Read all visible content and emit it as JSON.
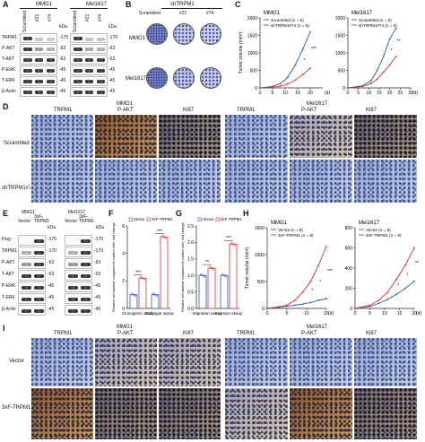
{
  "panels": {
    "A": "A",
    "B": "B",
    "C": "C",
    "D": "D",
    "E": "E",
    "F": "F",
    "G": "G",
    "H": "H",
    "I": "I"
  },
  "panelA": {
    "groups": [
      "MMG1",
      "Mel1617"
    ],
    "cols_left": [
      "Scrambled",
      "#21",
      "#74"
    ],
    "cols_right": [
      "Scrambled",
      "#21",
      "#74"
    ],
    "rows": [
      "TRPM1",
      "P-AKT",
      "T-AKT",
      "P-ERK",
      "T-ERK",
      "β-Actin"
    ],
    "kda_label": "kDa",
    "kda": [
      "-170",
      "-63",
      "-63",
      "-45",
      "-45",
      "-45"
    ]
  },
  "panelB": {
    "header": "shTRPM1",
    "cols": [
      "Scrambled",
      "#21",
      "#74"
    ],
    "rows": [
      "MMG1",
      "Mel1617"
    ]
  },
  "panelD": {
    "groups": [
      "MMG1",
      "Mel1617"
    ],
    "cols": [
      "TRPM1",
      "P-AKT",
      "Ki67",
      "TRPM1",
      "P-AKT",
      "Ki67"
    ],
    "rows": [
      "Scrambled",
      "shTRPM1#74"
    ]
  },
  "panelE": {
    "groups": [
      "MMG1",
      "Mel1617"
    ],
    "cols": [
      "Vector",
      "3xF-TRPM1",
      "Vector",
      "3xF-TRPM1"
    ],
    "rows": [
      "Flag",
      "TRPM1",
      "P-AKT",
      "T-AKT",
      "P-ERK",
      "T-ERK",
      "β-Actin"
    ],
    "kda_label": "kDa",
    "kda": [
      "-170",
      "-170",
      "-63",
      "-63",
      "-45",
      "-45",
      "-45"
    ]
  },
  "panelI": {
    "groups": [
      "MMG1",
      "Mel1617"
    ],
    "cols": [
      "TRPM1",
      "P-AKT",
      "Ki67",
      "TRPM1",
      "P-AKT",
      "Ki67"
    ],
    "rows": [
      "Vector",
      "3xF-TRPM1"
    ]
  },
  "colors": {
    "blue": "#2a54c8",
    "red": "#e0322c"
  },
  "chart_data": [
    {
      "id": "C1",
      "type": "line",
      "title": "MMG1",
      "ylabel": "Tumor volume (mm³)",
      "xlabel": "(d)",
      "xticks": [
        "0",
        "5",
        "10",
        "15",
        "20"
      ],
      "yticks": [
        "0",
        "500",
        "1000",
        "1500",
        "2000"
      ],
      "ylim": [
        0,
        2000
      ],
      "xlim": [
        0,
        25
      ],
      "series": [
        {
          "name": "Scrambled (n = 6)",
          "x": [
            0,
            5,
            8,
            11,
            14,
            17,
            20
          ],
          "y": [
            0,
            40,
            120,
            300,
            650,
            1100,
            1600
          ]
        },
        {
          "name": "shTRPM1#74 (n = 6)",
          "x": [
            0,
            5,
            8,
            11,
            14,
            17,
            20
          ],
          "y": [
            0,
            20,
            50,
            110,
            220,
            380,
            560
          ]
        }
      ],
      "annotations": [
        "*",
        "***"
      ]
    },
    {
      "id": "C2",
      "type": "line",
      "title": "Mel1617",
      "xlabel": "(d)",
      "xticks": [
        "0",
        "5",
        "10",
        "15",
        "20",
        "25",
        "30"
      ],
      "yticks": [
        "0",
        "500",
        "1000",
        "1500",
        "2000"
      ],
      "ylim": [
        0,
        2000
      ],
      "xlim": [
        0,
        30
      ],
      "series": [
        {
          "name": "Scrambled (n = 6)",
          "x": [
            0,
            7,
            11,
            14,
            17,
            20,
            23
          ],
          "y": [
            0,
            60,
            200,
            500,
            900,
            1400,
            1700
          ]
        },
        {
          "name": "shTRPM1#74 (n = 6)",
          "x": [
            0,
            7,
            11,
            14,
            17,
            20,
            23
          ],
          "y": [
            0,
            40,
            120,
            250,
            450,
            650,
            900
          ]
        }
      ],
      "annotations": [
        "*",
        "**"
      ]
    },
    {
      "id": "F",
      "type": "bar",
      "ylabel": "Relative cell number compared to control cells, fold change",
      "categories": [
        "Clonogenic assay",
        "Soft agar assay"
      ],
      "yticks": [
        "0",
        "2",
        "4",
        "6"
      ],
      "ylim": [
        0,
        6
      ],
      "series": [
        {
          "name": "Vector",
          "values": [
            1,
            1
          ]
        },
        {
          "name": "3xF-TRPM1",
          "values": [
            2.2,
            5.2
          ]
        }
      ],
      "annotations": [
        "***",
        "***"
      ]
    },
    {
      "id": "G",
      "type": "bar",
      "ylabel": "Relative cell number compared to control cells, fold change",
      "categories": [
        "Migration assay",
        "Invasion assay"
      ],
      "yticks": [
        "0.0",
        "0.5",
        "1.0",
        "1.5",
        "2.0",
        "2.5"
      ],
      "ylim": [
        0,
        2.5
      ],
      "series": [
        {
          "name": "Vector",
          "values": [
            1,
            1
          ]
        },
        {
          "name": "3xF-TRPM1",
          "values": [
            1.22,
            1.95
          ]
        }
      ],
      "annotations": [
        "**",
        "***"
      ]
    },
    {
      "id": "H1",
      "type": "line",
      "title": "MMG1",
      "ylabel": "Tumor volume (mm³)",
      "xlabel": "(d)",
      "xticks": [
        "0",
        "5",
        "10",
        "15"
      ],
      "yticks": [
        "0",
        "500",
        "1000",
        "1500"
      ],
      "ylim": [
        0,
        1500
      ],
      "xlim": [
        0,
        15
      ],
      "series": [
        {
          "name": "Vector (n = 8)",
          "x": [
            0,
            3,
            5,
            7,
            9,
            11,
            13,
            15
          ],
          "y": [
            0,
            20,
            40,
            60,
            80,
            110,
            150,
            180
          ]
        },
        {
          "name": "3xF-TRPM1 (n = 8)",
          "x": [
            0,
            3,
            5,
            7,
            9,
            11,
            13,
            15
          ],
          "y": [
            0,
            30,
            60,
            150,
            300,
            500,
            800,
            1150
          ]
        }
      ],
      "annotations": [
        "*",
        "*",
        "***"
      ]
    },
    {
      "id": "H2",
      "type": "line",
      "title": "Mel1617",
      "xlabel": "(d)",
      "xticks": [
        "0",
        "5",
        "10",
        "15",
        "20"
      ],
      "yticks": [
        "0",
        "200",
        "400",
        "600",
        "800"
      ],
      "ylim": [
        0,
        800
      ],
      "xlim": [
        0,
        20
      ],
      "series": [
        {
          "name": "Vector (n = 8)",
          "x": [
            0,
            5,
            8,
            11,
            14,
            17,
            20
          ],
          "y": [
            0,
            20,
            50,
            90,
            140,
            200,
            270
          ]
        },
        {
          "name": "3xF-TRPM1 (n = 8)",
          "x": [
            0,
            5,
            8,
            11,
            14,
            17,
            20
          ],
          "y": [
            0,
            30,
            80,
            160,
            290,
            430,
            600
          ]
        }
      ],
      "annotations": [
        "*",
        "*",
        "**"
      ]
    }
  ]
}
